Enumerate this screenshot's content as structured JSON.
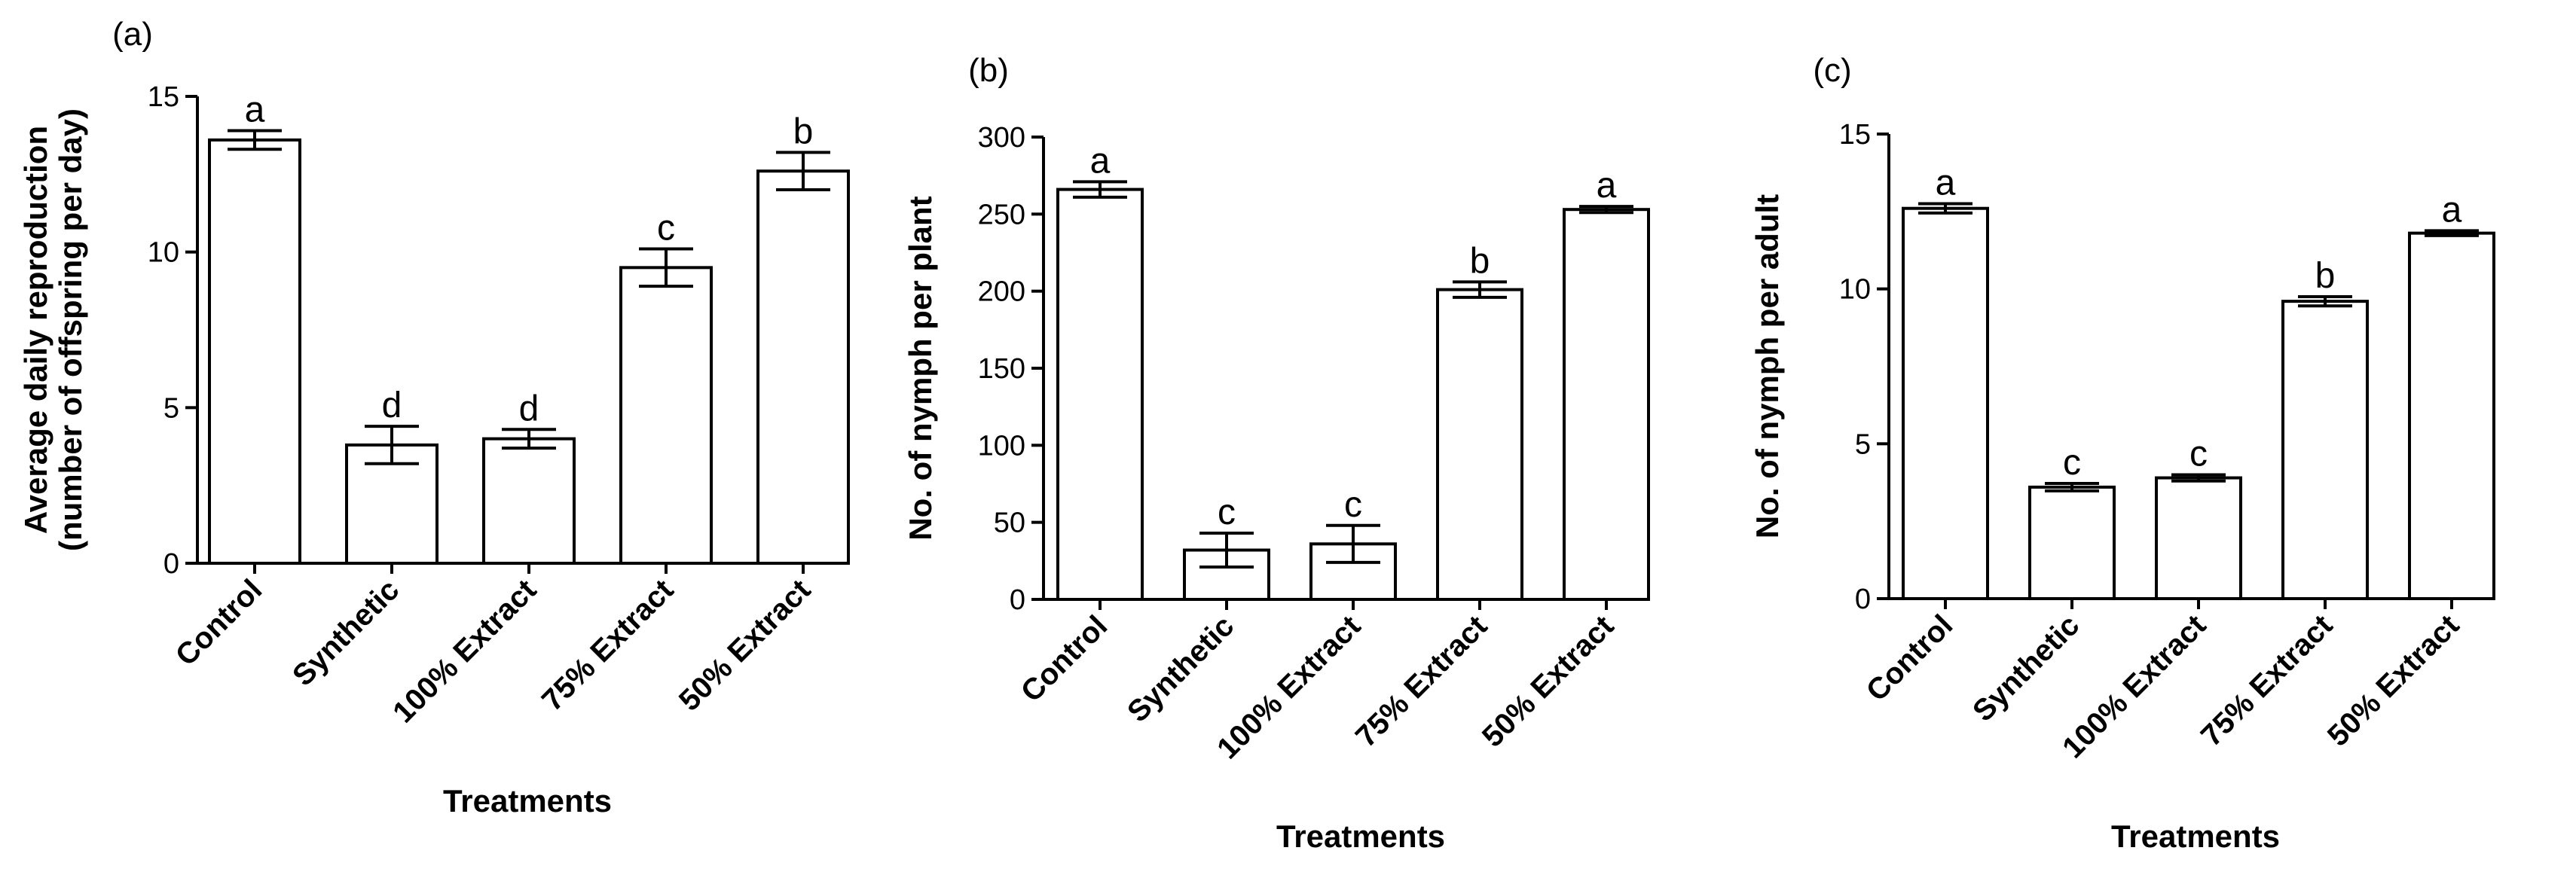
{
  "chart_data": [
    {
      "type": "bar",
      "panel_label": "(a)",
      "categories": [
        "Control",
        "Synthetic",
        "100% Extract",
        "75% Extract",
        "50% Extract"
      ],
      "values": [
        13.6,
        3.8,
        4.0,
        9.5,
        12.6
      ],
      "errors": [
        0.3,
        0.6,
        0.3,
        0.6,
        0.6
      ],
      "letters": [
        "a",
        "d",
        "d",
        "c",
        "b"
      ],
      "ylim": [
        0,
        15
      ],
      "yticks": [
        "0",
        "5",
        "10",
        "15"
      ],
      "ytick_values": [
        0,
        5,
        10,
        15
      ],
      "ylabel_line1": "Average daily reproduction",
      "ylabel_line2": "(number of offspring per day)",
      "xlabel": "Treatments"
    },
    {
      "type": "bar",
      "panel_label": "(b)",
      "categories": [
        "Control",
        "Synthetic",
        "100% Extract",
        "75% Extract",
        "50% Extract"
      ],
      "values": [
        266,
        32,
        36,
        201,
        253
      ],
      "errors": [
        5,
        11,
        12,
        5,
        2
      ],
      "letters": [
        "a",
        "c",
        "c",
        "b",
        "a"
      ],
      "ylim": [
        0,
        300
      ],
      "yticks": [
        "0",
        "50",
        "100",
        "150",
        "200",
        "250",
        "300"
      ],
      "ytick_values": [
        0,
        50,
        100,
        150,
        200,
        250,
        300
      ],
      "ylabel": "No. of nymph per plant",
      "xlabel": "Treatments"
    },
    {
      "type": "bar",
      "panel_label": "(c)",
      "categories": [
        "Control",
        "Synthetic",
        "100% Extract",
        "75% Extract",
        "50% Extract"
      ],
      "values": [
        12.6,
        3.6,
        3.9,
        9.6,
        11.8
      ],
      "errors": [
        0.15,
        0.12,
        0.1,
        0.15,
        0.08
      ],
      "letters": [
        "a",
        "c",
        "c",
        "b",
        "a"
      ],
      "ylim": [
        0,
        15
      ],
      "yticks": [
        "0",
        "5",
        "10",
        "15"
      ],
      "ytick_values": [
        0,
        5,
        10,
        15
      ],
      "ylabel": "No. of nymph per adult",
      "xlabel": "Treatments"
    }
  ]
}
